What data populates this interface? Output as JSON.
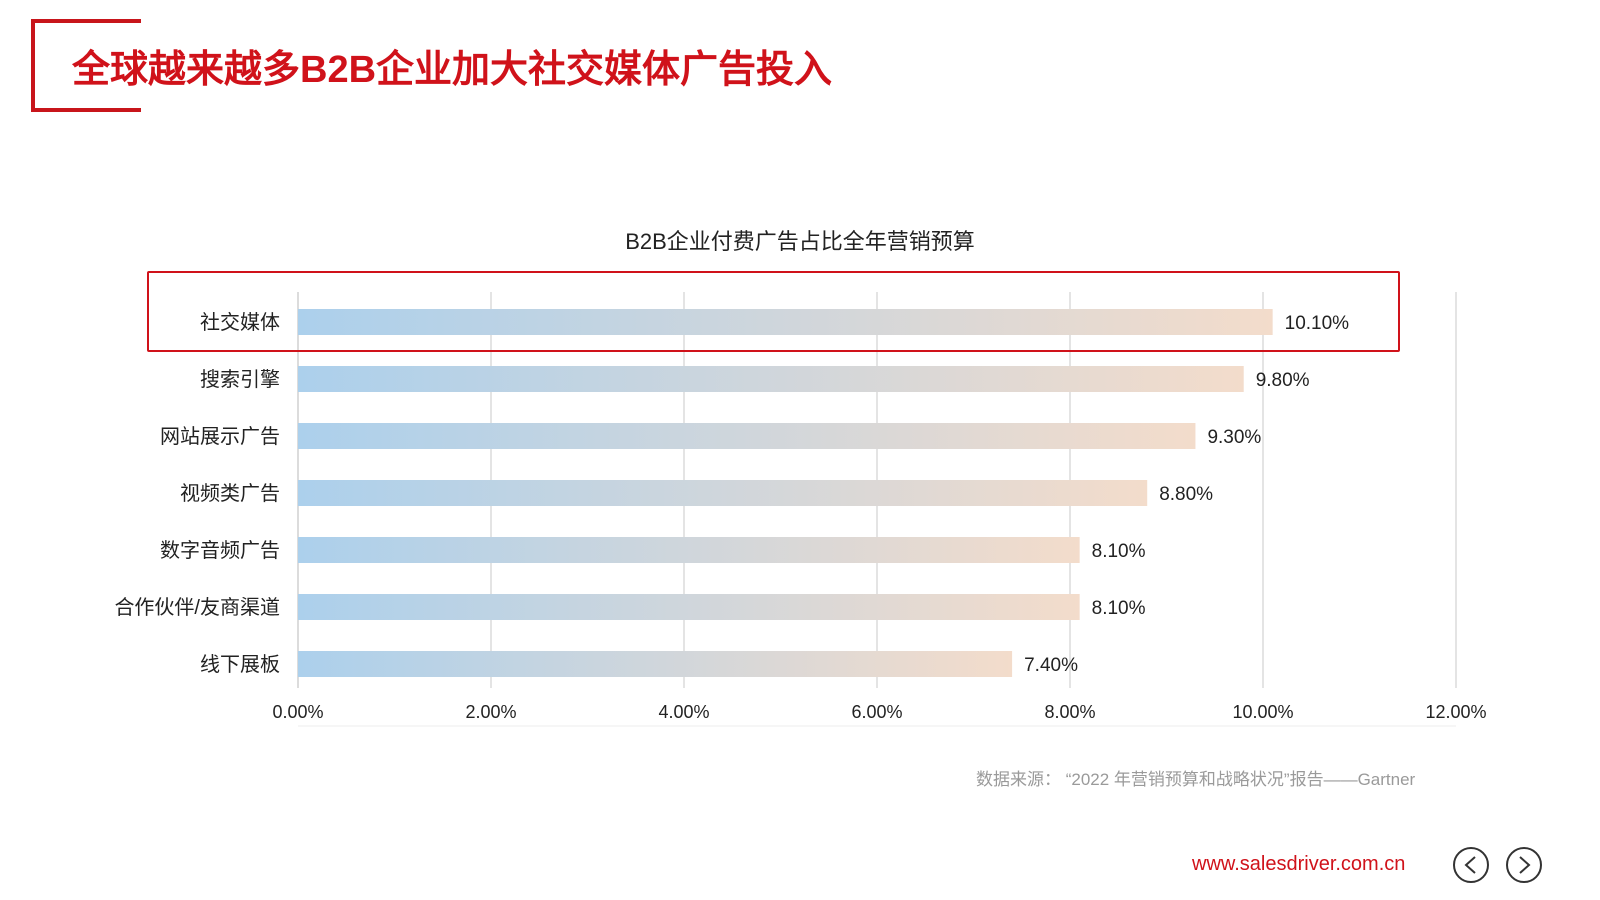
{
  "header": {
    "title": "全球越来越多B2B企业加大社交媒体广告投入"
  },
  "chart_data": {
    "type": "bar",
    "orientation": "horizontal",
    "title": "B2B企业付费广告占比全年营销预算",
    "categories": [
      "社交媒体",
      "搜索引擎",
      "网站展示广告",
      "视频类广告",
      "数字音频广告",
      "合作伙伴/友商渠道",
      "线下展板"
    ],
    "values": [
      10.1,
      9.8,
      9.3,
      8.8,
      8.1,
      8.1,
      7.4
    ],
    "value_labels": [
      "10.10%",
      "9.80%",
      "9.30%",
      "8.80%",
      "8.10%",
      "8.10%",
      "7.40%"
    ],
    "xlim": [
      0,
      12
    ],
    "x_ticks": [
      0,
      2,
      4,
      6,
      8,
      10,
      12
    ],
    "x_tick_labels": [
      "0.00%",
      "2.00%",
      "4.00%",
      "6.00%",
      "8.00%",
      "10.00%",
      "12.00%"
    ],
    "grid": true,
    "highlighted_category": "社交媒体",
    "bar_gradient": [
      "#acd0ec",
      "#f3dccb"
    ],
    "highlight_color": "#d0121a"
  },
  "footer": {
    "source": "数据来源：  “2022 年营销预算和战略状况”报告——Gartner",
    "website": "www.salesdriver.com.cn"
  },
  "colors": {
    "accent": "#d0121a"
  }
}
